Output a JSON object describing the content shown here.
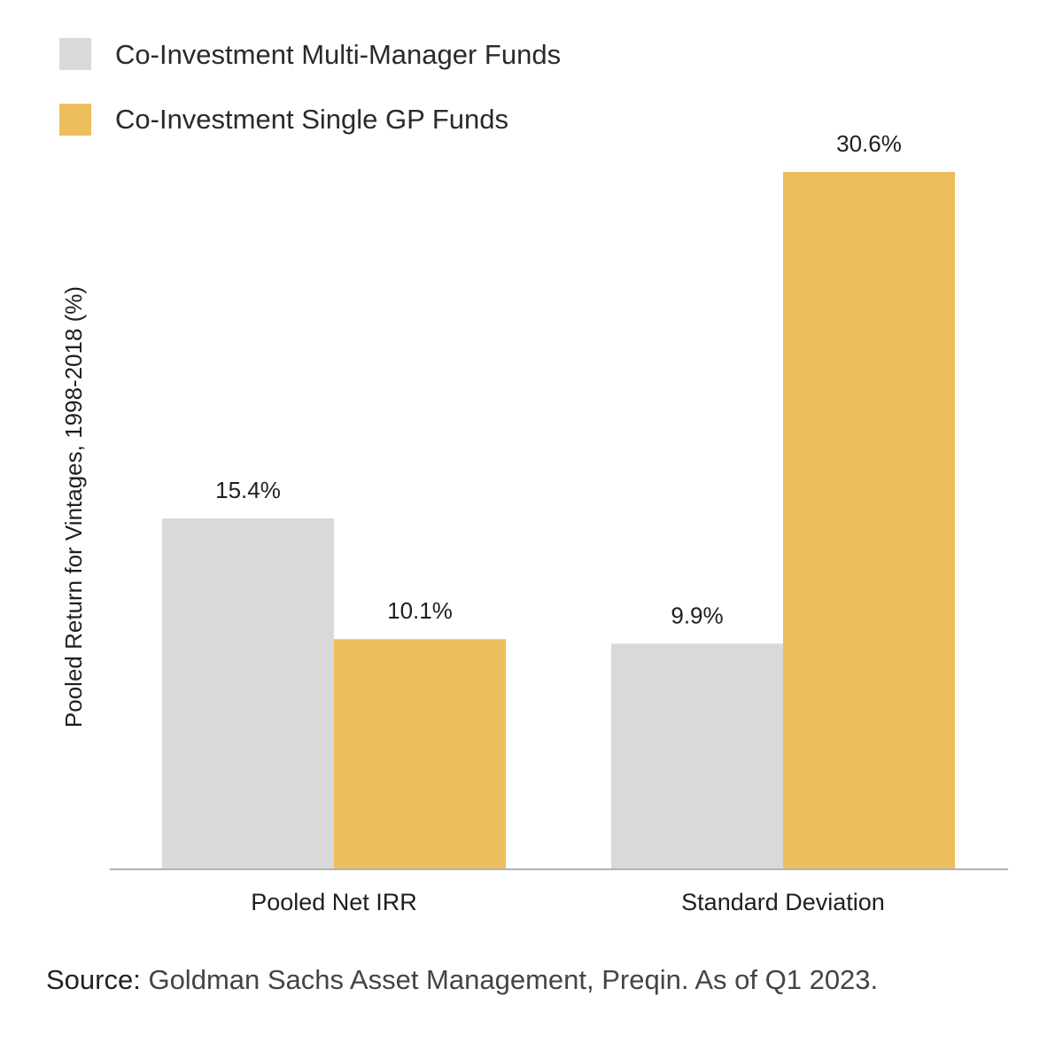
{
  "chart_data": {
    "type": "bar",
    "title": "",
    "xlabel": "",
    "ylabel": "Pooled Return for Vintages, 1998-2018 (%)",
    "categories": [
      "Pooled Net IRR",
      "Standard Deviation"
    ],
    "series": [
      {
        "name": "Co-Investment Multi-Manager Funds",
        "color": "#d9d9d9",
        "values": [
          15.4,
          9.9
        ],
        "labels": [
          "15.4%",
          "9.9%"
        ]
      },
      {
        "name": "Co-Investment Single GP Funds",
        "color": "#ecbe5e",
        "values": [
          10.1,
          30.6
        ],
        "labels": [
          "10.1%",
          "30.6%"
        ]
      }
    ],
    "ylim": [
      0,
      30.6
    ],
    "grid": false,
    "legend_position": "top-left"
  },
  "source": {
    "prefix": "Source:",
    "text": " Goldman Sachs Asset Management, Preqin. As of Q1 2023."
  },
  "colors": {
    "axis": "#b3b3b3"
  }
}
